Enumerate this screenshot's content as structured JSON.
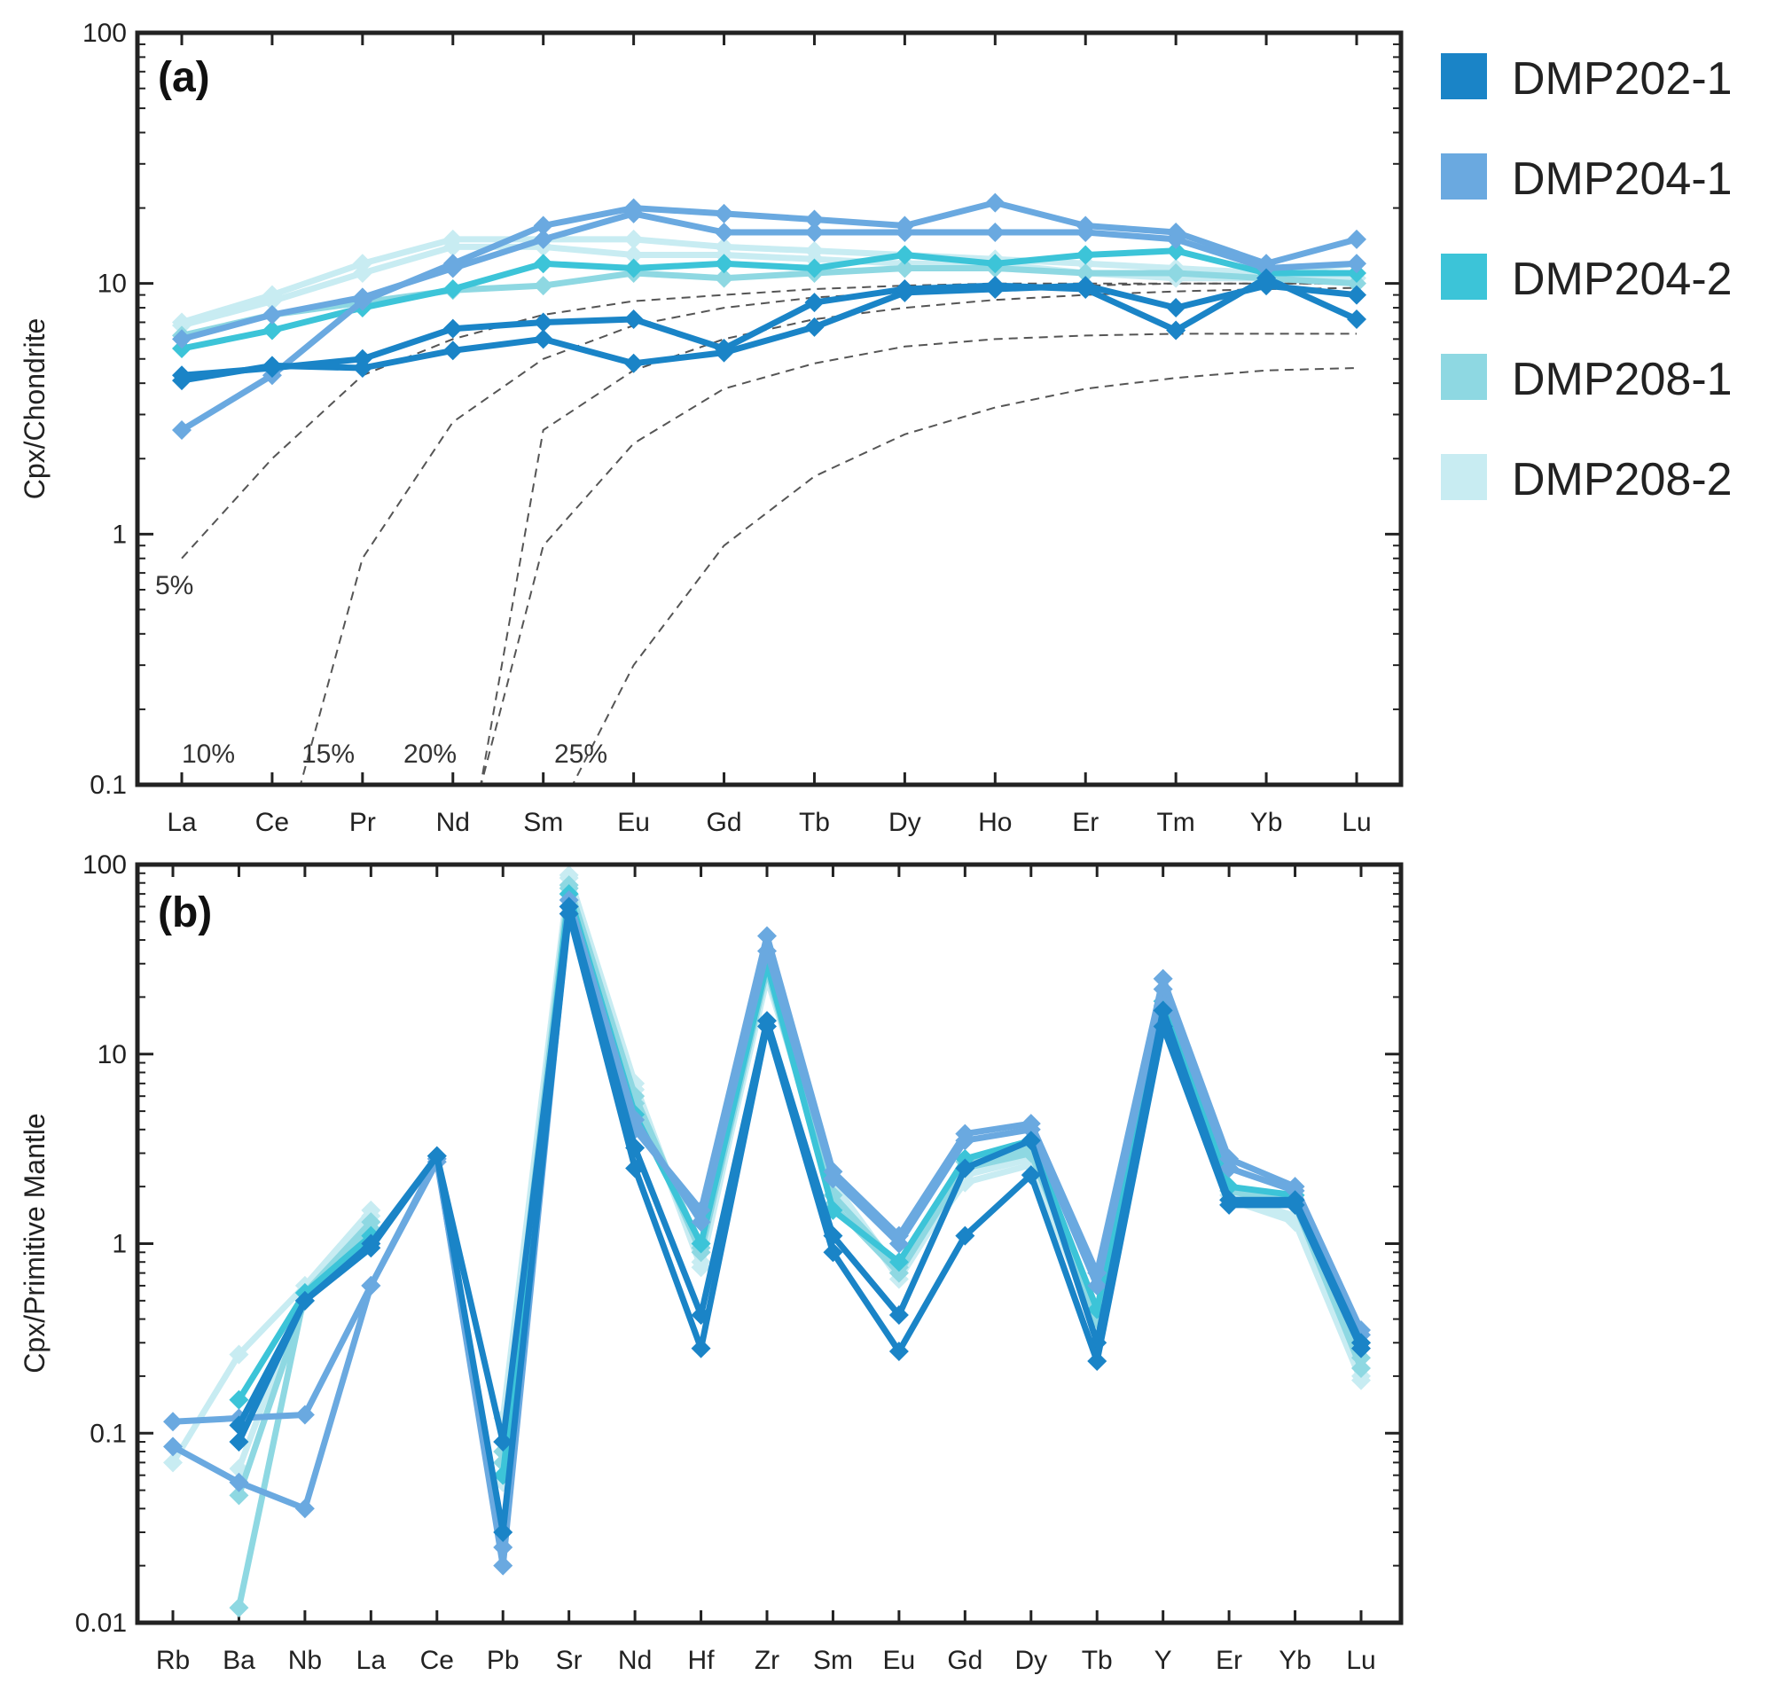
{
  "legend": [
    {
      "name": "DMP202-1",
      "color": "#1a84c7"
    },
    {
      "name": "DMP204-1",
      "color": "#6aa9e0"
    },
    {
      "name": "DMP204-2",
      "color": "#3cc4d8"
    },
    {
      "name": "DMP208-1",
      "color": "#8ed8e2"
    },
    {
      "name": "DMP208-2",
      "color": "#c8ecf2"
    }
  ],
  "chart_data": [
    {
      "id": "a",
      "type": "line",
      "panel_label": "(a)",
      "ylabel": "Cpx/Chondrite",
      "yscale": "log",
      "ylim": [
        0.1,
        100
      ],
      "yticks": [
        "0.1",
        "1",
        "10",
        "100"
      ],
      "categories": [
        "La",
        "Ce",
        "Pr",
        "Nd",
        "Sm",
        "Eu",
        "Gd",
        "Tb",
        "Dy",
        "Ho",
        "Er",
        "Tm",
        "Yb",
        "Lu"
      ],
      "melting_curves": [
        {
          "label": "5%",
          "values": [
            0.8,
            2,
            4.3,
            6,
            7.5,
            8.5,
            9,
            9.5,
            9.8,
            10,
            10,
            10,
            10,
            10
          ]
        },
        {
          "label": "10%",
          "values": [
            null,
            null,
            0.8,
            2.8,
            5,
            6.8,
            8,
            8.8,
            9.2,
            9.6,
            9.8,
            10,
            10,
            10
          ]
        },
        {
          "label": "15%",
          "values": [
            null,
            null,
            null,
            null,
            2.6,
            4.5,
            6,
            7.2,
            8,
            8.6,
            9,
            9.3,
            9.5,
            9.6
          ]
        },
        {
          "label": "20%",
          "values": [
            null,
            null,
            null,
            null,
            0.9,
            2.3,
            3.8,
            4.8,
            5.6,
            6,
            6.2,
            6.3,
            6.3,
            6.3
          ]
        },
        {
          "label": "25%",
          "values": [
            null,
            null,
            null,
            null,
            null,
            0.3,
            0.9,
            1.7,
            2.5,
            3.2,
            3.8,
            4.2,
            4.5,
            4.6
          ]
        }
      ],
      "series": [
        {
          "name": "DMP202-1",
          "values": [
            4.3,
            4.6,
            5,
            6.6,
            7,
            7.2,
            5.5,
            8.4,
            9.5,
            9.8,
            9.5,
            6.5,
            10.5,
            7.2
          ]
        },
        {
          "name": "DMP202-1",
          "values": [
            4.1,
            4.7,
            4.6,
            5.4,
            6,
            4.8,
            5.3,
            6.7,
            9.2,
            9.5,
            9.8,
            8,
            9.8,
            9
          ]
        },
        {
          "name": "DMP204-1",
          "values": [
            2.6,
            4.3,
            8.5,
            12,
            17,
            20,
            19,
            18,
            17,
            21,
            17,
            16,
            12,
            15
          ]
        },
        {
          "name": "DMP204-1",
          "values": [
            6,
            7.5,
            8.8,
            11.5,
            15,
            19,
            16,
            16,
            16,
            16,
            16,
            15,
            11.5,
            12
          ]
        },
        {
          "name": "DMP204-2",
          "values": [
            5.5,
            6.5,
            8,
            9.5,
            12,
            11.5,
            12,
            11.5,
            13,
            12,
            13,
            13.5,
            11,
            11
          ]
        },
        {
          "name": "DMP208-1",
          "values": [
            6.2,
            7.5,
            8.4,
            9.4,
            9.8,
            11,
            10.5,
            11,
            11.5,
            11.5,
            11,
            11,
            10.5,
            10
          ]
        },
        {
          "name": "DMP208-2",
          "values": [
            7,
            9,
            12,
            15,
            15,
            15,
            14,
            13.5,
            13,
            12.5,
            12,
            11.5,
            11,
            12
          ]
        },
        {
          "name": "DMP208-2",
          "values": [
            6.8,
            8.5,
            11,
            14,
            14,
            13,
            13,
            12.5,
            12,
            12,
            11,
            10.5,
            10.5,
            10.5
          ]
        }
      ]
    },
    {
      "id": "b",
      "type": "line",
      "panel_label": "(b)",
      "ylabel": "Cpx/Primitive Mantle",
      "yscale": "log",
      "ylim": [
        0.01,
        100
      ],
      "yticks": [
        "0.01",
        "0.1",
        "1",
        "10",
        "100"
      ],
      "categories": [
        "Rb",
        "Ba",
        "Nb",
        "La",
        "Ce",
        "Pb",
        "Sr",
        "Nd",
        "Hf",
        "Zr",
        "Sm",
        "Eu",
        "Gd",
        "Dy",
        "Tb",
        "Y",
        "Er",
        "Yb",
        "Lu"
      ],
      "series": [
        {
          "name": "DMP202-1",
          "values": [
            null,
            0.09,
            0.5,
            1,
            2.9,
            0.03,
            55,
            2.5,
            0.28,
            14,
            0.9,
            0.27,
            1.1,
            2.3,
            0.24,
            14,
            1.6,
            1.6,
            0.28
          ]
        },
        {
          "name": "DMP202-1",
          "values": [
            null,
            0.11,
            0.5,
            0.95,
            2.9,
            0.09,
            60,
            3.2,
            0.42,
            15,
            1.1,
            0.42,
            2.5,
            3.5,
            0.3,
            17,
            1.7,
            1.7,
            0.3
          ]
        },
        {
          "name": "DMP204-1",
          "values": [
            0.085,
            0.055,
            0.04,
            0.6,
            2.8,
            0.02,
            60,
            4,
            1.5,
            42,
            2.4,
            1.1,
            3.8,
            4.3,
            0.7,
            25,
            2.8,
            2,
            0.35
          ]
        },
        {
          "name": "DMP204-1",
          "values": [
            0.115,
            0.12,
            0.125,
            0.6,
            2.7,
            0.025,
            65,
            4.5,
            1.3,
            35,
            2.2,
            1,
            3.5,
            4,
            0.6,
            22,
            2.5,
            1.9,
            0.33
          ]
        },
        {
          "name": "DMP204-2",
          "values": [
            null,
            0.15,
            0.55,
            1.1,
            null,
            0.06,
            70,
            4.8,
            1,
            30,
            1.5,
            0.8,
            2.8,
            3.5,
            0.45,
            19,
            2,
            1.8,
            0.3
          ]
        },
        {
          "name": "DMP208-1",
          "values": [
            null,
            0.012,
            0.55,
            1.3,
            null,
            0.07,
            75,
            5.5,
            0.9,
            28,
            1.6,
            0.7,
            2.5,
            3,
            0.4,
            17,
            2,
            1.7,
            0.25
          ]
        },
        {
          "name": "DMP208-1",
          "values": [
            null,
            0.047,
            0.5,
            1.2,
            null,
            0.08,
            78,
            6,
            0.95,
            30,
            1.8,
            0.75,
            2.7,
            3.2,
            0.42,
            18,
            1.9,
            1.6,
            0.22
          ]
        },
        {
          "name": "DMP208-2",
          "values": [
            0.07,
            0.26,
            0.6,
            1.5,
            null,
            0.12,
            88,
            7,
            0.8,
            25,
            2,
            0.65,
            2.3,
            2.8,
            0.38,
            16,
            1.8,
            1.4,
            0.2
          ]
        },
        {
          "name": "DMP208-2",
          "values": [
            null,
            0.065,
            0.55,
            1.4,
            null,
            0.055,
            85,
            6.5,
            0.75,
            27,
            2.1,
            0.7,
            2.1,
            2.6,
            0.35,
            15,
            1.7,
            1.3,
            0.19
          ]
        }
      ]
    }
  ]
}
